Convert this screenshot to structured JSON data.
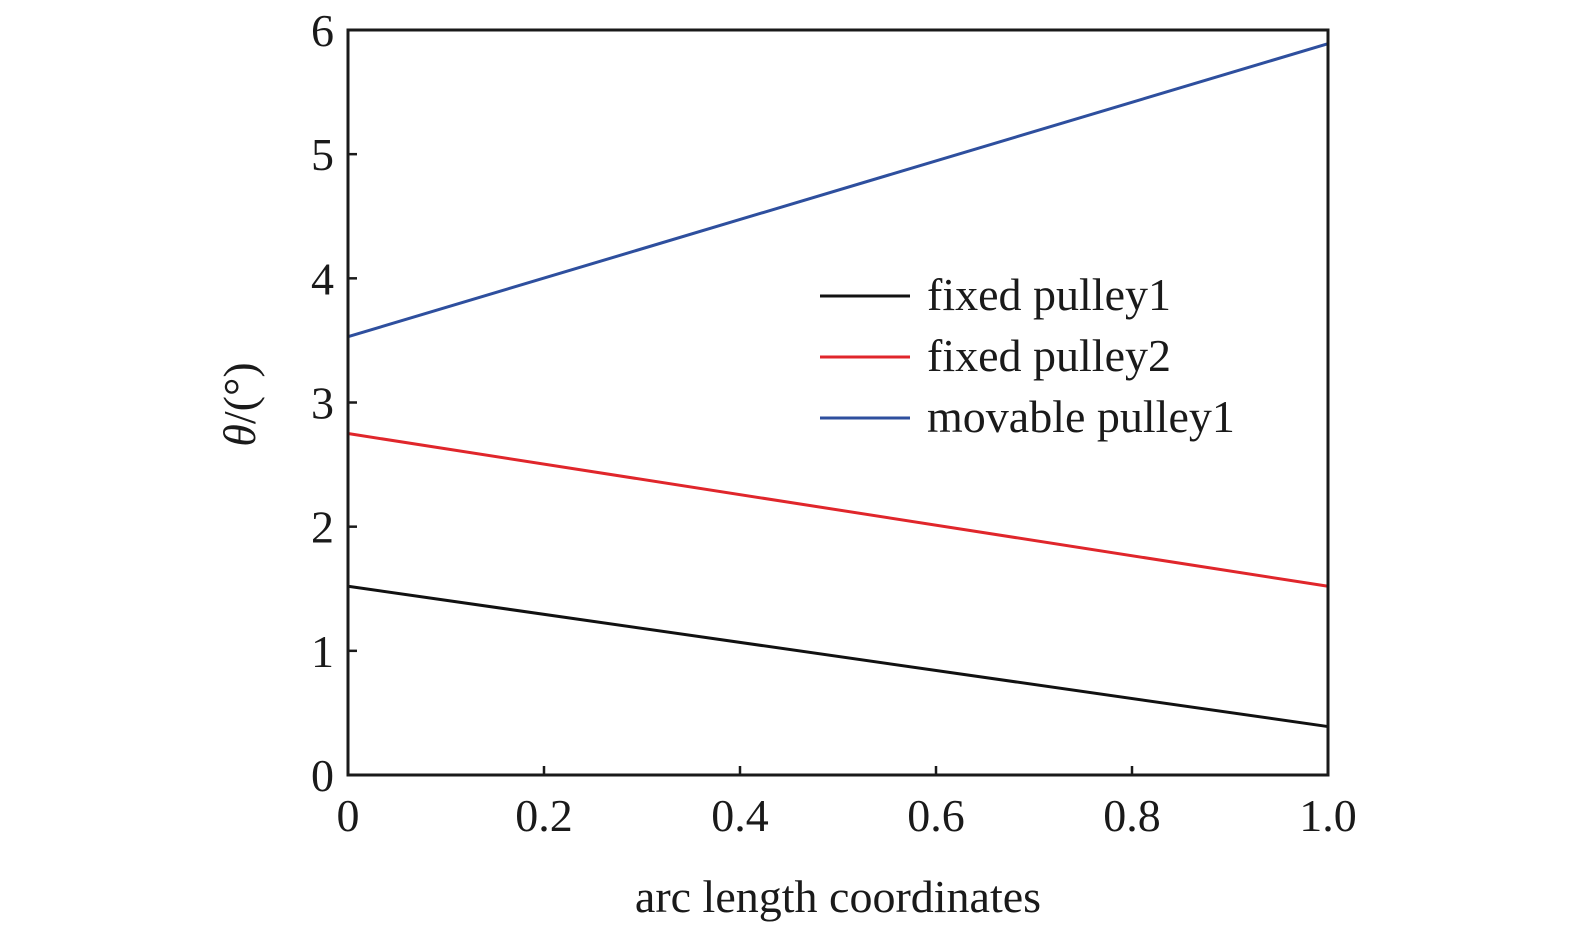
{
  "chart_data": {
    "type": "line",
    "xlabel": "arc length coordinates",
    "ylabel_symbol": "θ",
    "ylabel_unit": "/(°)",
    "xlim": [
      0,
      1.0
    ],
    "ylim": [
      0,
      6
    ],
    "xticks": [
      0,
      0.2,
      0.4,
      0.6,
      0.8,
      1.0
    ],
    "xtick_labels": [
      "0",
      "0.2",
      "0.4",
      "0.6",
      "0.8",
      "1.0"
    ],
    "yticks": [
      0,
      1,
      2,
      3,
      4,
      5,
      6
    ],
    "ytick_labels": [
      "0",
      "1",
      "2",
      "3",
      "4",
      "5",
      "6"
    ],
    "grid": false,
    "legend_position": "center-right",
    "series": [
      {
        "name": "fixed pulley1",
        "color": "#111111",
        "x": [
          0,
          1.0
        ],
        "y": [
          1.52,
          0.39
        ]
      },
      {
        "name": "fixed pulley2",
        "color": "#e0262b",
        "x": [
          0,
          1.0
        ],
        "y": [
          2.75,
          1.52
        ]
      },
      {
        "name": "movable pulley1",
        "color": "#2e4f9e",
        "x": [
          0,
          1.0
        ],
        "y": [
          3.53,
          5.89
        ]
      }
    ]
  }
}
